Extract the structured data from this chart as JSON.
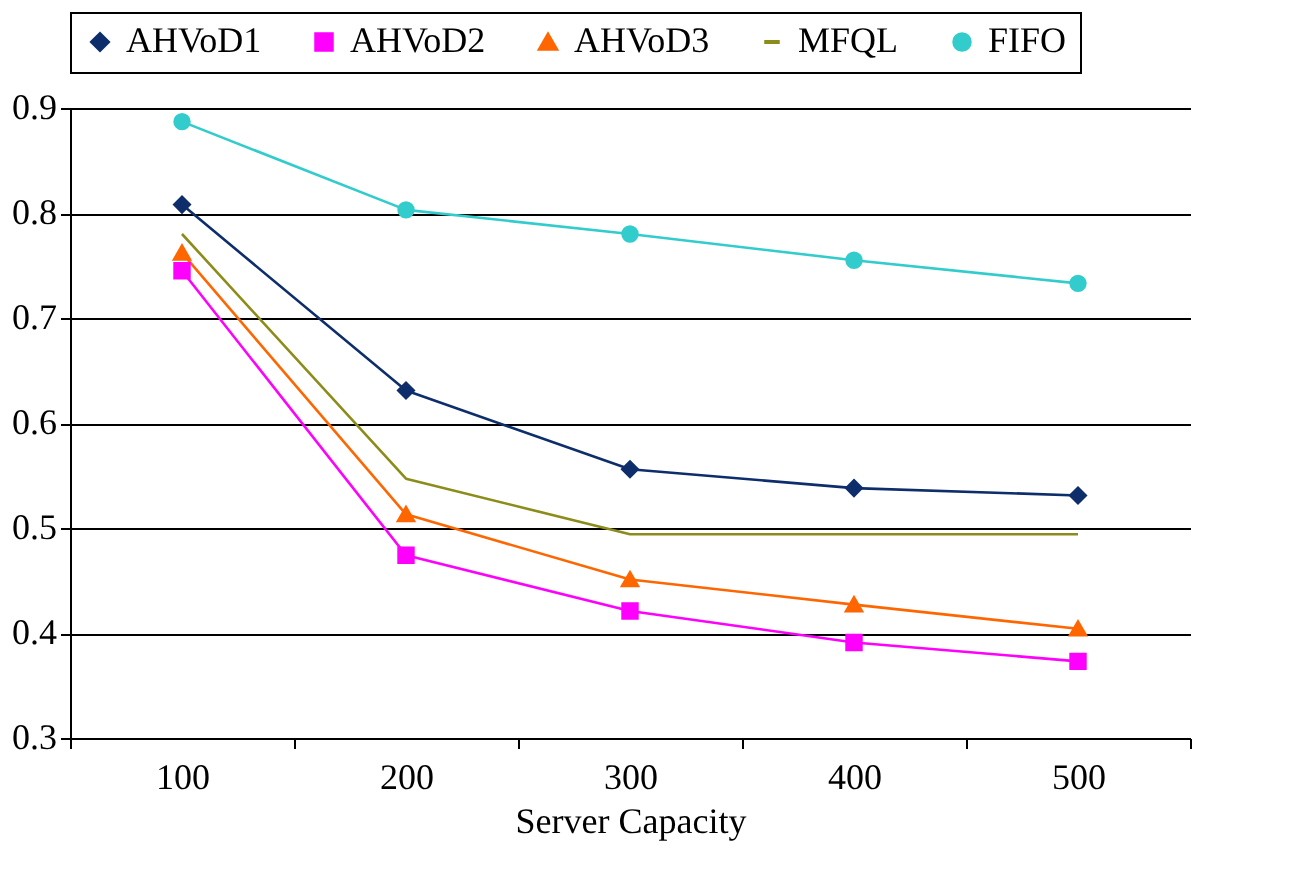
{
  "chart_data": {
    "type": "line",
    "xlabel": "Server Capacity",
    "categories": [
      "100",
      "200",
      "300",
      "400",
      "500"
    ],
    "series": [
      {
        "name": "AHVoD1",
        "color": "#0d2d6b",
        "marker": "diamond",
        "values": [
          0.808,
          0.631,
          0.556,
          0.538,
          0.531
        ]
      },
      {
        "name": "AHVoD2",
        "color": "#ff00ff",
        "marker": "square",
        "values": [
          0.745,
          0.474,
          0.421,
          0.391,
          0.373
        ]
      },
      {
        "name": "AHVoD3",
        "color": "#ff6600",
        "marker": "triangle",
        "values": [
          0.762,
          0.513,
          0.451,
          0.427,
          0.404
        ]
      },
      {
        "name": "MFQL",
        "color": "#8c8c1a",
        "marker": "none",
        "values": [
          0.78,
          0.547,
          0.494,
          0.494,
          0.494
        ]
      },
      {
        "name": "FIFO",
        "color": "#33cccc",
        "marker": "circle",
        "values": [
          0.887,
          0.803,
          0.78,
          0.755,
          0.733
        ]
      }
    ],
    "ylim": [
      0.3,
      0.9
    ],
    "yticks": [
      0.3,
      0.4,
      0.5,
      0.6,
      0.7,
      0.8,
      0.9
    ],
    "grid": "y",
    "legend": "top"
  }
}
